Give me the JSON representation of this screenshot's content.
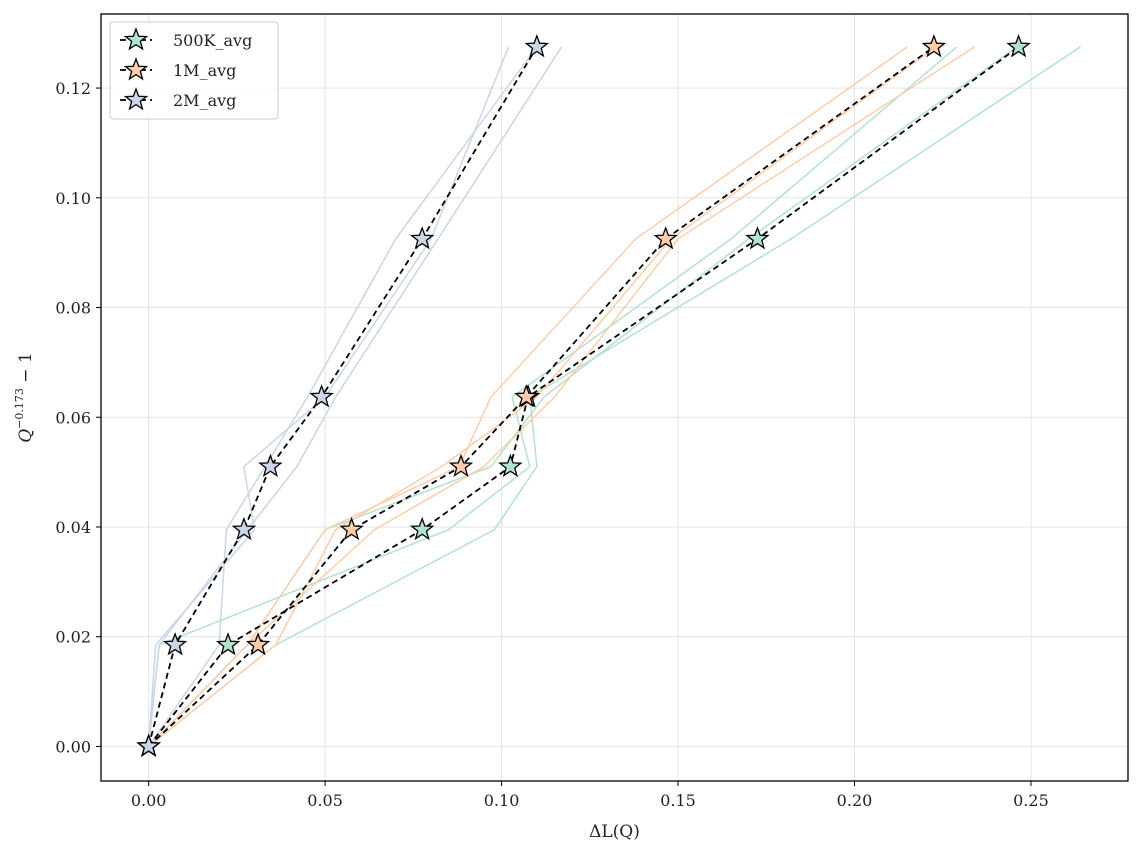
{
  "chart_data": {
    "type": "line",
    "xlabel": "ΔL(Q)",
    "ylabel_base": "Q",
    "ylabel_exp": "−0.173",
    "ylabel_tail": " − 1",
    "xlim": [
      -0.0135,
      0.2775
    ],
    "ylim": [
      -0.0063,
      0.1335
    ],
    "xticks": [
      0.0,
      0.05,
      0.1,
      0.15,
      0.2,
      0.25
    ],
    "xtick_labels": [
      "0.00",
      "0.05",
      "0.10",
      "0.15",
      "0.20",
      "0.25"
    ],
    "yticks": [
      0.0,
      0.02,
      0.04,
      0.06,
      0.08,
      0.1,
      0.12
    ],
    "ytick_labels": [
      "0.00",
      "0.02",
      "0.04",
      "0.06",
      "0.08",
      "0.10",
      "0.12"
    ],
    "grid": true,
    "legend_position": "top-left",
    "y_levels": [
      0.0,
      0.0185,
      0.0395,
      0.051,
      0.0637,
      0.0925,
      0.1275
    ],
    "series": [
      {
        "name": "500K_avg",
        "color": "#b3e2cd",
        "avg_x": [
          0.0,
          0.0225,
          0.0775,
          0.1025,
          0.1075,
          0.1725,
          0.2465
        ],
        "runs": [
          [
            0.0,
            0.003,
            0.085,
            0.108,
            0.103,
            0.165,
            0.229
          ],
          [
            0.0,
            0.036,
            0.098,
            0.11,
            0.108,
            0.182,
            0.264
          ],
          [
            0.0,
            0.028,
            0.05,
            0.097,
            0.112,
            0.17,
            0.246
          ]
        ]
      },
      {
        "name": "1M_avg",
        "color": "#fdcdac",
        "avg_x": [
          0.0,
          0.031,
          0.0575,
          0.0885,
          0.107,
          0.1465,
          0.2225
        ],
        "runs": [
          [
            0.0,
            0.028,
            0.05,
            0.088,
            0.097,
            0.138,
            0.215
          ],
          [
            0.0,
            0.036,
            0.053,
            0.083,
            0.11,
            0.148,
            0.223
          ],
          [
            0.0,
            0.028,
            0.064,
            0.095,
            0.115,
            0.15,
            0.234
          ]
        ]
      },
      {
        "name": "2M_avg",
        "color": "#cbd5e8",
        "avg_x": [
          0.0,
          0.0075,
          0.027,
          0.0345,
          0.049,
          0.0775,
          0.11
        ],
        "runs": [
          [
            0.0,
            0.002,
            0.03,
            0.027,
            0.05,
            0.08,
            0.102
          ],
          [
            0.0,
            0.003,
            0.028,
            0.042,
            0.053,
            0.082,
            0.117
          ],
          [
            0.0,
            0.02,
            0.022,
            0.033,
            0.045,
            0.07,
            0.11
          ]
        ]
      }
    ]
  }
}
